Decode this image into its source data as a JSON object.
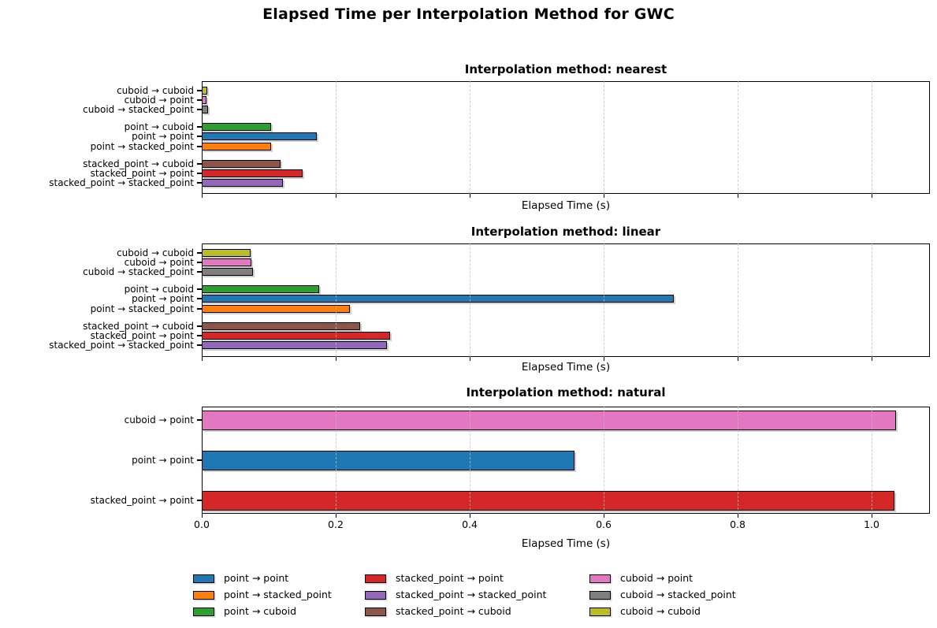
{
  "figure": {
    "title": "Elapsed Time per Interpolation Method for GWC"
  },
  "colors": {
    "point → point": "#1f77b4",
    "point → stacked_point": "#ff7f0e",
    "point → cuboid": "#2ca02c",
    "stacked_point → point": "#d62728",
    "stacked_point → stacked_point": "#9467bd",
    "stacked_point → cuboid": "#8c564b",
    "cuboid → point": "#e377c2",
    "cuboid → stacked_point": "#7f7f7f",
    "cuboid → cuboid": "#bcbd22"
  },
  "legend": {
    "position": "lower-center",
    "columns": [
      [
        "point → point",
        "point → stacked_point",
        "point → cuboid"
      ],
      [
        "stacked_point → point",
        "stacked_point → stacked_point",
        "stacked_point → cuboid"
      ],
      [
        "cuboid → point",
        "cuboid → stacked_point",
        "cuboid → cuboid"
      ]
    ]
  },
  "chart_data": [
    {
      "type": "bar",
      "orientation": "horizontal",
      "method": "nearest",
      "title": "Interpolation method: nearest",
      "xlabel": "Elapsed Time (s)",
      "xlim": [
        0,
        1.087
      ],
      "xticks": [
        0,
        0.2,
        0.4,
        0.6,
        0.8,
        1.0
      ],
      "xtick_labels_visible": false,
      "grid": "vertical-dashed",
      "categories": [
        "cuboid → cuboid",
        "cuboid → point",
        "cuboid → stacked_point",
        "point → cuboid",
        "point → point",
        "point → stacked_point",
        "stacked_point → cuboid",
        "stacked_point → point",
        "stacked_point → stacked_point"
      ],
      "values": [
        0.008,
        0.007,
        0.009,
        0.104,
        0.172,
        0.104,
        0.118,
        0.151,
        0.121
      ]
    },
    {
      "type": "bar",
      "orientation": "horizontal",
      "method": "linear",
      "title": "Interpolation method: linear",
      "xlabel": "Elapsed Time (s)",
      "xlim": [
        0,
        1.087
      ],
      "xticks": [
        0,
        0.2,
        0.4,
        0.6,
        0.8,
        1.0
      ],
      "xtick_labels_visible": false,
      "grid": "vertical-dashed",
      "categories": [
        "cuboid → cuboid",
        "cuboid → point",
        "cuboid → stacked_point",
        "point → cuboid",
        "point → point",
        "point → stacked_point",
        "stacked_point → cuboid",
        "stacked_point → point",
        "stacked_point → stacked_point"
      ],
      "values": [
        0.073,
        0.074,
        0.077,
        0.175,
        0.705,
        0.221,
        0.237,
        0.281,
        0.277
      ]
    },
    {
      "type": "bar",
      "orientation": "horizontal",
      "method": "natural",
      "title": "Interpolation method: natural",
      "xlabel": "Elapsed Time (s)",
      "xlim": [
        0,
        1.087
      ],
      "xticks": [
        0,
        0.2,
        0.4,
        0.6,
        0.8,
        1.0
      ],
      "xtick_labels_visible": true,
      "xtick_label_texts": [
        "0.0",
        "0.2",
        "0.4",
        "0.6",
        "0.8",
        "1.0"
      ],
      "grid": "vertical-dashed",
      "categories": [
        "cuboid → point",
        "point → point",
        "stacked_point → point"
      ],
      "values": [
        1.036,
        0.556,
        1.034
      ]
    }
  ]
}
